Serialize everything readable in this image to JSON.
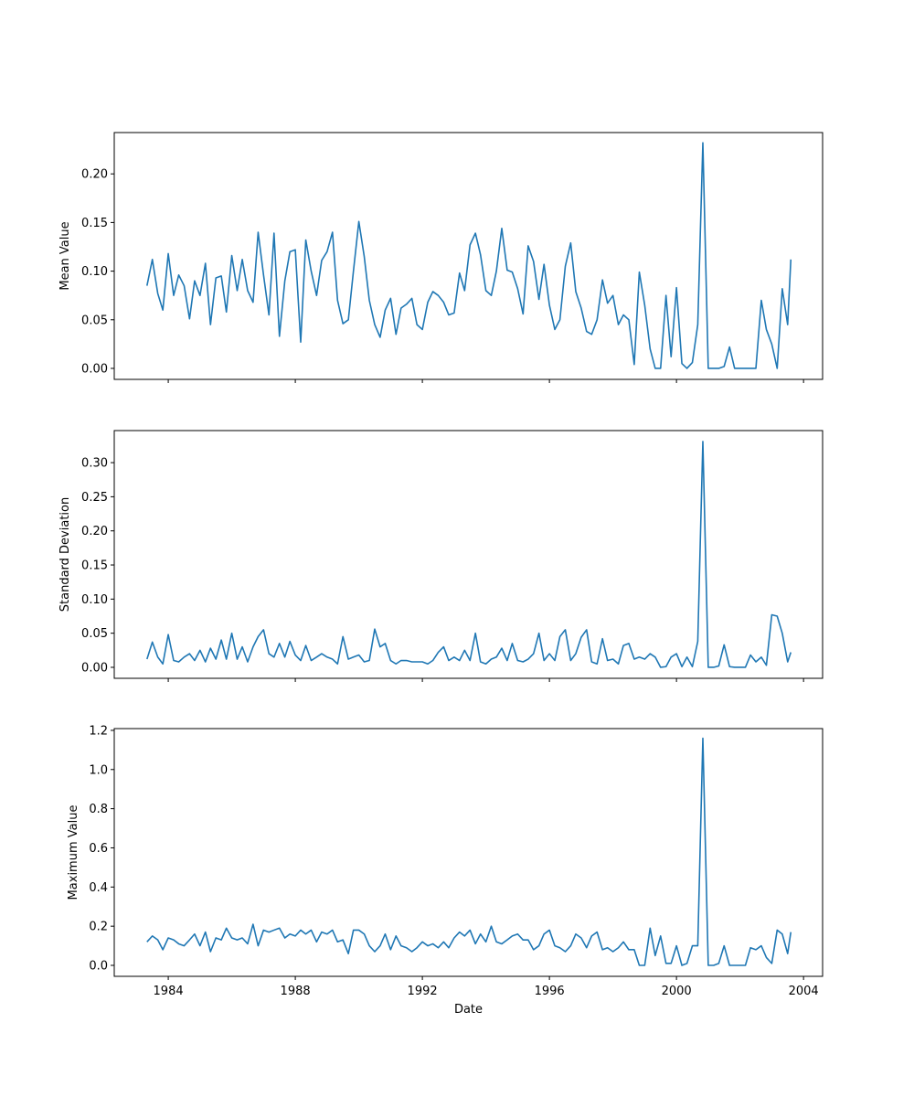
{
  "chart_data": [
    {
      "type": "line",
      "ylabel": "Mean Value",
      "x": [
        1983.33,
        1983.5,
        1983.67,
        1983.83,
        1984.0,
        1984.17,
        1984.33,
        1984.5,
        1984.67,
        1984.83,
        1985.0,
        1985.17,
        1985.33,
        1985.5,
        1985.67,
        1985.83,
        1986.0,
        1986.17,
        1986.33,
        1986.5,
        1986.67,
        1986.83,
        1987.0,
        1987.17,
        1987.33,
        1987.5,
        1987.67,
        1987.83,
        1988.0,
        1988.17,
        1988.33,
        1988.5,
        1988.67,
        1988.83,
        1989.0,
        1989.17,
        1989.33,
        1989.5,
        1989.67,
        1989.83,
        1990.0,
        1990.17,
        1990.33,
        1990.5,
        1990.67,
        1990.83,
        1991.0,
        1991.17,
        1991.33,
        1991.5,
        1991.67,
        1991.83,
        1992.0,
        1992.17,
        1992.33,
        1992.5,
        1992.67,
        1992.83,
        1993.0,
        1993.17,
        1993.33,
        1993.5,
        1993.67,
        1993.83,
        1994.0,
        1994.17,
        1994.33,
        1994.5,
        1994.67,
        1994.83,
        1995.0,
        1995.17,
        1995.33,
        1995.5,
        1995.67,
        1995.83,
        1996.0,
        1996.17,
        1996.33,
        1996.5,
        1996.67,
        1996.83,
        1997.0,
        1997.17,
        1997.33,
        1997.5,
        1997.67,
        1997.83,
        1998.0,
        1998.17,
        1998.33,
        1998.5,
        1998.67,
        1998.83,
        1999.0,
        1999.17,
        1999.33,
        1999.5,
        1999.67,
        1999.83,
        2000.0,
        2000.17,
        2000.33,
        2000.5,
        2000.67,
        2000.83,
        2001.0,
        2001.17,
        2001.33,
        2001.5,
        2001.67,
        2001.83,
        2002.0,
        2002.17,
        2002.33,
        2002.5,
        2002.67,
        2002.83,
        2003.0,
        2003.17,
        2003.33,
        2003.5,
        2003.6
      ],
      "series": [
        {
          "color": "#1f77b4",
          "values": [
            0.085,
            0.112,
            0.077,
            0.06,
            0.118,
            0.075,
            0.096,
            0.085,
            0.051,
            0.09,
            0.075,
            0.108,
            0.045,
            0.093,
            0.095,
            0.058,
            0.116,
            0.08,
            0.112,
            0.08,
            0.068,
            0.14,
            0.096,
            0.055,
            0.139,
            0.033,
            0.09,
            0.12,
            0.122,
            0.027,
            0.132,
            0.1,
            0.075,
            0.111,
            0.12,
            0.14,
            0.07,
            0.046,
            0.05,
            0.1,
            0.151,
            0.115,
            0.07,
            0.045,
            0.032,
            0.06,
            0.072,
            0.035,
            0.062,
            0.066,
            0.072,
            0.045,
            0.04,
            0.068,
            0.079,
            0.075,
            0.068,
            0.055,
            0.057,
            0.098,
            0.08,
            0.127,
            0.139,
            0.117,
            0.08,
            0.075,
            0.1,
            0.144,
            0.101,
            0.099,
            0.082,
            0.056,
            0.126,
            0.11,
            0.071,
            0.107,
            0.065,
            0.04,
            0.05,
            0.105,
            0.129,
            0.079,
            0.062,
            0.038,
            0.035,
            0.05,
            0.091,
            0.067,
            0.075,
            0.045,
            0.055,
            0.05,
            0.004,
            0.099,
            0.065,
            0.02,
            0.0,
            0.0,
            0.075,
            0.012,
            0.083,
            0.005,
            0.0,
            0.006,
            0.045,
            0.232,
            0.0,
            0.0,
            0.0,
            0.002,
            0.022,
            0.0,
            0.0,
            0.0,
            0.0,
            0.0,
            0.07,
            0.04,
            0.025,
            0.0,
            0.082,
            0.045,
            0.112
          ]
        }
      ],
      "xlim": [
        1982.3,
        2004.6
      ],
      "xticks": [
        1984,
        1988,
        1992,
        1996,
        2000,
        2004
      ],
      "ylim": [
        -0.0113,
        0.2425
      ],
      "yticks": [
        {
          "value": 0,
          "label": "0.00"
        },
        {
          "value": 0.05,
          "label": "0.05"
        },
        {
          "value": 0.1,
          "label": "0.10"
        },
        {
          "value": 0.15,
          "label": "0.15"
        },
        {
          "value": 0.2,
          "label": "0.20"
        }
      ]
    },
    {
      "type": "line",
      "ylabel": "Standard Deviation",
      "x": [
        1983.33,
        1983.5,
        1983.67,
        1983.83,
        1984.0,
        1984.17,
        1984.33,
        1984.5,
        1984.67,
        1984.83,
        1985.0,
        1985.17,
        1985.33,
        1985.5,
        1985.67,
        1985.83,
        1986.0,
        1986.17,
        1986.33,
        1986.5,
        1986.67,
        1986.83,
        1987.0,
        1987.17,
        1987.33,
        1987.5,
        1987.67,
        1987.83,
        1988.0,
        1988.17,
        1988.33,
        1988.5,
        1988.67,
        1988.83,
        1989.0,
        1989.17,
        1989.33,
        1989.5,
        1989.67,
        1989.83,
        1990.0,
        1990.17,
        1990.33,
        1990.5,
        1990.67,
        1990.83,
        1991.0,
        1991.17,
        1991.33,
        1991.5,
        1991.67,
        1991.83,
        1992.0,
        1992.17,
        1992.33,
        1992.5,
        1992.67,
        1992.83,
        1993.0,
        1993.17,
        1993.33,
        1993.5,
        1993.67,
        1993.83,
        1994.0,
        1994.17,
        1994.33,
        1994.5,
        1994.67,
        1994.83,
        1995.0,
        1995.17,
        1995.33,
        1995.5,
        1995.67,
        1995.83,
        1996.0,
        1996.17,
        1996.33,
        1996.5,
        1996.67,
        1996.83,
        1997.0,
        1997.17,
        1997.33,
        1997.5,
        1997.67,
        1997.83,
        1998.0,
        1998.17,
        1998.33,
        1998.5,
        1998.67,
        1998.83,
        1999.0,
        1999.17,
        1999.33,
        1999.5,
        1999.67,
        1999.83,
        2000.0,
        2000.17,
        2000.33,
        2000.5,
        2000.67,
        2000.83,
        2001.0,
        2001.17,
        2001.33,
        2001.5,
        2001.67,
        2001.83,
        2002.0,
        2002.17,
        2002.33,
        2002.5,
        2002.67,
        2002.83,
        2003.0,
        2003.17,
        2003.33,
        2003.5,
        2003.6
      ],
      "series": [
        {
          "color": "#1f77b4",
          "values": [
            0.012,
            0.037,
            0.015,
            0.005,
            0.048,
            0.01,
            0.008,
            0.015,
            0.02,
            0.01,
            0.025,
            0.008,
            0.028,
            0.012,
            0.04,
            0.012,
            0.05,
            0.012,
            0.03,
            0.008,
            0.03,
            0.045,
            0.055,
            0.02,
            0.015,
            0.035,
            0.015,
            0.038,
            0.018,
            0.01,
            0.032,
            0.01,
            0.015,
            0.02,
            0.015,
            0.012,
            0.005,
            0.045,
            0.012,
            0.015,
            0.018,
            0.008,
            0.01,
            0.056,
            0.03,
            0.035,
            0.01,
            0.005,
            0.01,
            0.01,
            0.008,
            0.008,
            0.008,
            0.005,
            0.01,
            0.022,
            0.03,
            0.01,
            0.015,
            0.01,
            0.025,
            0.01,
            0.05,
            0.008,
            0.005,
            0.012,
            0.015,
            0.028,
            0.01,
            0.035,
            0.01,
            0.008,
            0.012,
            0.02,
            0.05,
            0.01,
            0.02,
            0.01,
            0.045,
            0.055,
            0.01,
            0.02,
            0.044,
            0.055,
            0.008,
            0.005,
            0.042,
            0.01,
            0.012,
            0.005,
            0.032,
            0.035,
            0.012,
            0.015,
            0.012,
            0.02,
            0.015,
            0.0,
            0.001,
            0.015,
            0.02,
            0.001,
            0.015,
            0.001,
            0.038,
            0.331,
            0.0,
            0.0,
            0.002,
            0.033,
            0.001,
            0.0,
            0.0,
            0.0,
            0.018,
            0.008,
            0.015,
            0.003,
            0.077,
            0.075,
            0.05,
            0.008,
            0.022
          ]
        }
      ],
      "xlim": [
        1982.3,
        2004.6
      ],
      "xticks": [
        1984,
        1988,
        1992,
        1996,
        2000,
        2004
      ],
      "ylim": [
        -0.0161,
        0.347
      ],
      "yticks": [
        {
          "value": 0,
          "label": "0.00"
        },
        {
          "value": 0.05,
          "label": "0.05"
        },
        {
          "value": 0.1,
          "label": "0.10"
        },
        {
          "value": 0.15,
          "label": "0.15"
        },
        {
          "value": 0.2,
          "label": "0.20"
        },
        {
          "value": 0.25,
          "label": "0.25"
        },
        {
          "value": 0.3,
          "label": "0.30"
        }
      ]
    },
    {
      "type": "line",
      "ylabel": "Maximum Value",
      "xlabel": "Date",
      "x": [
        1983.33,
        1983.5,
        1983.67,
        1983.83,
        1984.0,
        1984.17,
        1984.33,
        1984.5,
        1984.67,
        1984.83,
        1985.0,
        1985.17,
        1985.33,
        1985.5,
        1985.67,
        1985.83,
        1986.0,
        1986.17,
        1986.33,
        1986.5,
        1986.67,
        1986.83,
        1987.0,
        1987.17,
        1987.33,
        1987.5,
        1987.67,
        1987.83,
        1988.0,
        1988.17,
        1988.33,
        1988.5,
        1988.67,
        1988.83,
        1989.0,
        1989.17,
        1989.33,
        1989.5,
        1989.67,
        1989.83,
        1990.0,
        1990.17,
        1990.33,
        1990.5,
        1990.67,
        1990.83,
        1991.0,
        1991.17,
        1991.33,
        1991.5,
        1991.67,
        1991.83,
        1992.0,
        1992.17,
        1992.33,
        1992.5,
        1992.67,
        1992.83,
        1993.0,
        1993.17,
        1993.33,
        1993.5,
        1993.67,
        1993.83,
        1994.0,
        1994.17,
        1994.33,
        1994.5,
        1994.67,
        1994.83,
        1995.0,
        1995.17,
        1995.33,
        1995.5,
        1995.67,
        1995.83,
        1996.0,
        1996.17,
        1996.33,
        1996.5,
        1996.67,
        1996.83,
        1997.0,
        1997.17,
        1997.33,
        1997.5,
        1997.67,
        1997.83,
        1998.0,
        1998.17,
        1998.33,
        1998.5,
        1998.67,
        1998.83,
        1999.0,
        1999.17,
        1999.33,
        1999.5,
        1999.67,
        1999.83,
        2000.0,
        2000.17,
        2000.33,
        2000.5,
        2000.67,
        2000.83,
        2001.0,
        2001.17,
        2001.33,
        2001.5,
        2001.67,
        2001.83,
        2002.0,
        2002.17,
        2002.33,
        2002.5,
        2002.67,
        2002.83,
        2003.0,
        2003.17,
        2003.33,
        2003.5,
        2003.6
      ],
      "series": [
        {
          "color": "#1f77b4",
          "values": [
            0.12,
            0.15,
            0.13,
            0.08,
            0.14,
            0.13,
            0.11,
            0.1,
            0.13,
            0.16,
            0.1,
            0.17,
            0.07,
            0.14,
            0.13,
            0.19,
            0.14,
            0.13,
            0.14,
            0.11,
            0.21,
            0.1,
            0.18,
            0.17,
            0.18,
            0.19,
            0.14,
            0.16,
            0.15,
            0.18,
            0.16,
            0.18,
            0.12,
            0.17,
            0.16,
            0.18,
            0.12,
            0.13,
            0.06,
            0.18,
            0.18,
            0.16,
            0.1,
            0.07,
            0.1,
            0.16,
            0.08,
            0.15,
            0.1,
            0.09,
            0.07,
            0.09,
            0.12,
            0.1,
            0.11,
            0.09,
            0.12,
            0.09,
            0.14,
            0.17,
            0.15,
            0.18,
            0.11,
            0.16,
            0.12,
            0.2,
            0.12,
            0.11,
            0.13,
            0.15,
            0.16,
            0.13,
            0.13,
            0.08,
            0.1,
            0.16,
            0.18,
            0.1,
            0.09,
            0.07,
            0.1,
            0.16,
            0.14,
            0.09,
            0.15,
            0.17,
            0.08,
            0.09,
            0.07,
            0.09,
            0.12,
            0.08,
            0.08,
            0.0,
            0.0,
            0.19,
            0.05,
            0.15,
            0.01,
            0.01,
            0.1,
            0.0,
            0.01,
            0.1,
            0.1,
            1.16,
            0.0,
            0.0,
            0.01,
            0.1,
            0.0,
            0.0,
            0.0,
            0.0,
            0.09,
            0.08,
            0.1,
            0.04,
            0.01,
            0.18,
            0.16,
            0.06,
            0.17
          ]
        }
      ],
      "xlim": [
        1982.3,
        2004.6
      ],
      "xticks": [
        1984,
        1988,
        1992,
        1996,
        2000,
        2004
      ],
      "ylim": [
        -0.056,
        1.209
      ],
      "yticks": [
        {
          "value": 0,
          "label": "0.0"
        },
        {
          "value": 0.2,
          "label": "0.2"
        },
        {
          "value": 0.4,
          "label": "0.4"
        },
        {
          "value": 0.6,
          "label": "0.6"
        },
        {
          "value": 0.8,
          "label": "0.8"
        },
        {
          "value": 1.0,
          "label": "1.0"
        },
        {
          "value": 1.2,
          "label": "1.2"
        }
      ]
    }
  ]
}
